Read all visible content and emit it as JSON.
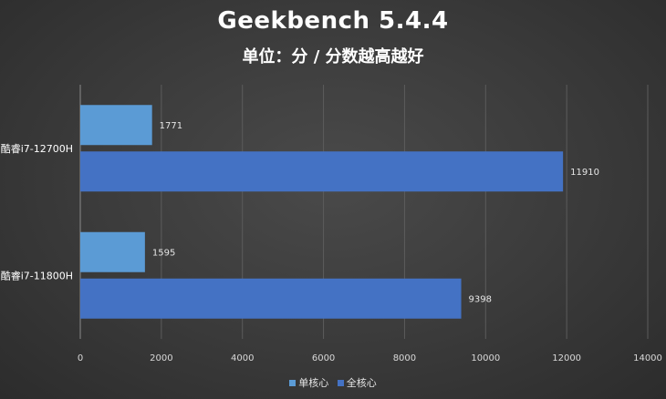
{
  "chart_data": {
    "type": "bar",
    "orientation": "horizontal",
    "title": "Geekbench 5.4.4",
    "subtitle": "单位：分 / 分数越高越好",
    "categories": [
      "酷睿i7-12700H",
      "酷睿i7-11800H"
    ],
    "series": [
      {
        "name": "单核心",
        "values": [
          1771,
          1595
        ],
        "color": "#5b9bd5"
      },
      {
        "name": "全核心",
        "values": [
          11910,
          9398
        ],
        "color": "#4472c4"
      }
    ],
    "xlim": [
      0,
      14000
    ],
    "x_ticks": [
      "0",
      "2000",
      "4000",
      "6000",
      "8000",
      "10000",
      "12000",
      "14000"
    ],
    "grid": true,
    "legend_position": "bottom"
  }
}
